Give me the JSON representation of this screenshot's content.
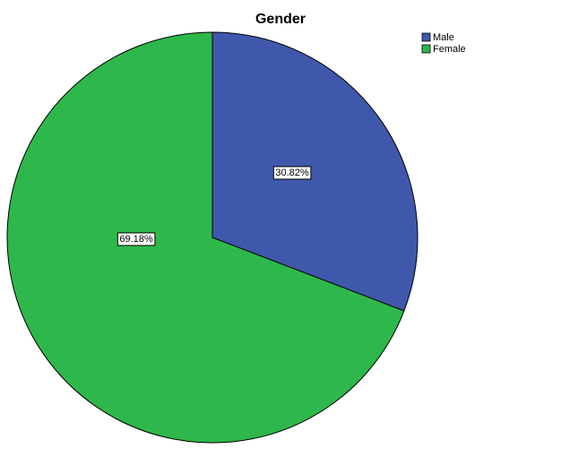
{
  "chart_data": {
    "type": "pie",
    "title": "Gender",
    "categories": [
      "Male",
      "Female"
    ],
    "values": [
      30.82,
      69.18
    ],
    "value_labels": [
      "30.82%",
      "69.18%"
    ],
    "colors": [
      "#3f58ab",
      "#2eb84b"
    ],
    "legend": "top-right"
  }
}
